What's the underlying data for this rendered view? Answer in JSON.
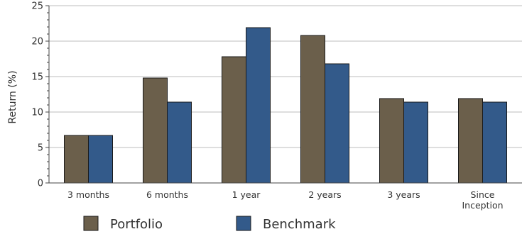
{
  "chart_data": {
    "type": "bar",
    "title": "",
    "xlabel": "",
    "ylabel": "Return (%)",
    "ylim": [
      0,
      25
    ],
    "yticks": [
      0,
      5,
      10,
      15,
      20,
      25
    ],
    "grid": true,
    "legend_position": "bottom",
    "categories": [
      [
        "3 months"
      ],
      [
        "6 months"
      ],
      [
        "1 year"
      ],
      [
        "2 years"
      ],
      [
        "3 years"
      ],
      [
        "Since",
        "Inception"
      ]
    ],
    "series": [
      {
        "name": "Portfolio",
        "color": "#6b5f4b",
        "values": [
          6.7,
          14.8,
          17.8,
          20.8,
          11.9,
          11.9
        ]
      },
      {
        "name": "Benchmark",
        "color": "#335a8a",
        "values": [
          6.7,
          11.4,
          21.9,
          16.8,
          11.4,
          11.4
        ]
      }
    ]
  }
}
